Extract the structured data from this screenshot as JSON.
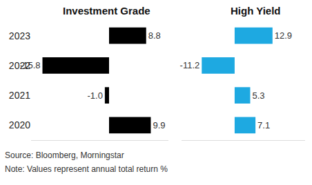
{
  "chart_data": [
    {
      "type": "bar",
      "orientation": "horizontal",
      "title": "Investment Grade",
      "categories": [
        "2023",
        "2022",
        "2021",
        "2020"
      ],
      "values": [
        8.8,
        -15.8,
        -1.0,
        9.9
      ],
      "value_labels": [
        "8.8",
        "-15.8",
        "-1.0",
        "9.9"
      ],
      "color": "#000000",
      "data_labels": true,
      "xlim": [
        -18.5,
        14
      ],
      "tick_labels": "y",
      "grid": false
    },
    {
      "type": "bar",
      "orientation": "horizontal",
      "title": "High Yield",
      "categories": [
        "2023",
        "2022",
        "2021",
        "2020"
      ],
      "values": [
        12.9,
        -11.2,
        5.3,
        7.1
      ],
      "color": "#1ea9e1",
      "data_labels": true,
      "xlim": [
        -18,
        24
      ],
      "tick_labels": false,
      "grid": false
    }
  ],
  "notes": [
    "Source: Bloomberg, Morningstar",
    "Note: Values represent annual total return %"
  ]
}
